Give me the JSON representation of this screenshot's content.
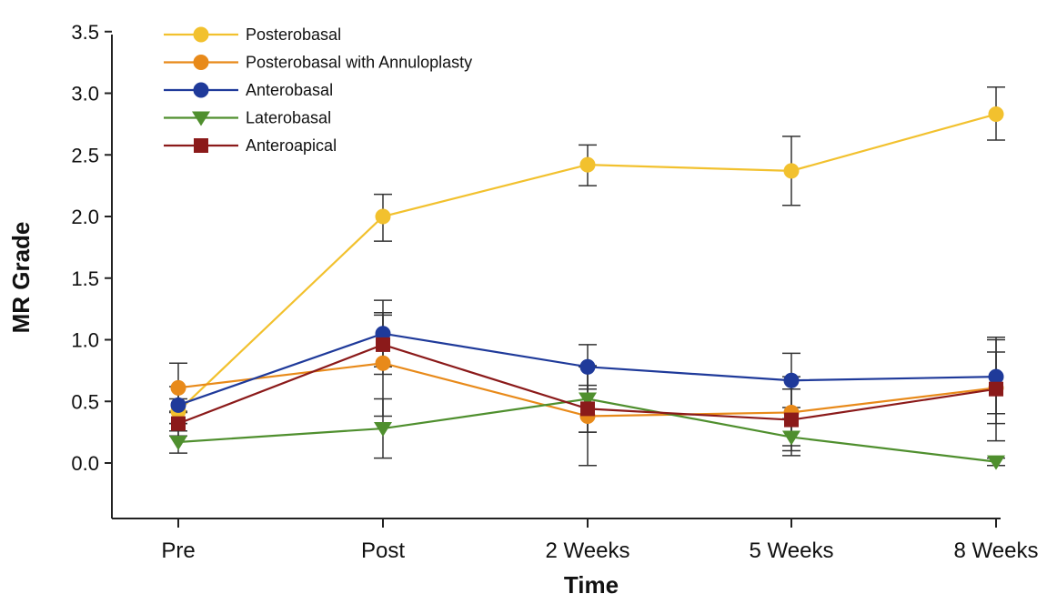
{
  "chart_data": {
    "type": "line",
    "title": "",
    "xlabel": "Time",
    "ylabel": "MR Grade",
    "categories": [
      "Pre",
      "Post",
      "2 Weeks",
      "5 Weeks",
      "8 Weeks"
    ],
    "yticks": [
      "3.5",
      "3.0",
      "2.5",
      "2.0",
      "1.5",
      "1.0",
      "0.5",
      "0.0"
    ],
    "ylim": [
      -0.45,
      3.5
    ],
    "grid": false,
    "legend_position": "top-left",
    "series": [
      {
        "name": "Posterobasal",
        "color": "#f2c12e",
        "marker": "circle",
        "values": [
          0.42,
          2.0,
          2.42,
          2.37,
          2.83
        ],
        "err_low": [
          0.32,
          1.8,
          2.25,
          2.09,
          2.62
        ],
        "err_high": [
          0.52,
          2.18,
          2.58,
          2.65,
          3.05
        ]
      },
      {
        "name": "Posterobasal with Annuloplasty",
        "color": "#e88a1a",
        "marker": "circle",
        "values": [
          0.61,
          0.81,
          0.38,
          0.41,
          0.61
        ],
        "err_low": [
          0.41,
          0.38,
          -0.02,
          0.14,
          0.32
        ],
        "err_high": [
          0.81,
          1.22,
          0.78,
          0.7,
          0.9
        ]
      },
      {
        "name": "Anterobasal",
        "color": "#1f3a9a",
        "marker": "circle",
        "values": [
          0.47,
          1.05,
          0.78,
          0.67,
          0.7
        ],
        "err_low": [
          0.32,
          0.78,
          0.6,
          0.45,
          0.4
        ],
        "err_high": [
          0.62,
          1.32,
          0.96,
          0.89,
          1.0
        ]
      },
      {
        "name": "Laterobasal",
        "color": "#4f8f2e",
        "marker": "triangle-down",
        "values": [
          0.17,
          0.28,
          0.52,
          0.21,
          0.01
        ],
        "err_low": [
          0.08,
          0.04,
          0.25,
          0.06,
          -0.02
        ],
        "err_high": [
          0.26,
          0.52,
          0.79,
          0.36,
          0.04
        ]
      },
      {
        "name": "Anteroapical",
        "color": "#8b1a1a",
        "marker": "square",
        "values": [
          0.32,
          0.96,
          0.44,
          0.35,
          0.6
        ],
        "err_low": [
          0.22,
          0.72,
          0.25,
          0.1,
          0.18
        ],
        "err_high": [
          0.42,
          1.2,
          0.63,
          0.6,
          1.02
        ]
      }
    ]
  }
}
